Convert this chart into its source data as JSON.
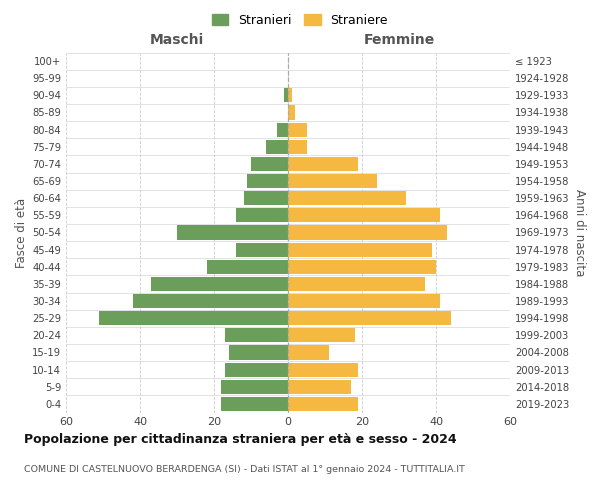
{
  "age_groups": [
    "0-4",
    "5-9",
    "10-14",
    "15-19",
    "20-24",
    "25-29",
    "30-34",
    "35-39",
    "40-44",
    "45-49",
    "50-54",
    "55-59",
    "60-64",
    "65-69",
    "70-74",
    "75-79",
    "80-84",
    "85-89",
    "90-94",
    "95-99",
    "100+"
  ],
  "birth_years": [
    "2019-2023",
    "2014-2018",
    "2009-2013",
    "2004-2008",
    "1999-2003",
    "1994-1998",
    "1989-1993",
    "1984-1988",
    "1979-1983",
    "1974-1978",
    "1969-1973",
    "1964-1968",
    "1959-1963",
    "1954-1958",
    "1949-1953",
    "1944-1948",
    "1939-1943",
    "1934-1938",
    "1929-1933",
    "1924-1928",
    "≤ 1923"
  ],
  "males": [
    18,
    18,
    17,
    16,
    17,
    51,
    42,
    37,
    22,
    14,
    30,
    14,
    12,
    11,
    10,
    6,
    3,
    0,
    1,
    0,
    0
  ],
  "females": [
    19,
    17,
    19,
    11,
    18,
    44,
    41,
    37,
    40,
    39,
    43,
    41,
    32,
    24,
    19,
    5,
    5,
    2,
    1,
    0,
    0
  ],
  "male_color": "#6a9e5a",
  "female_color": "#f5b942",
  "bg_color": "#ffffff",
  "grid_color": "#cccccc",
  "title": "Popolazione per cittadinanza straniera per età e sesso - 2024",
  "subtitle": "COMUNE DI CASTELNUOVO BERARDENGA (SI) - Dati ISTAT al 1° gennaio 2024 - TUTTITALIA.IT",
  "xlabel_left": "Maschi",
  "xlabel_right": "Femmine",
  "ylabel_left": "Fasce di età",
  "ylabel_right": "Anni di nascita",
  "legend_stranieri": "Stranieri",
  "legend_straniere": "Straniere",
  "xlim": 60
}
